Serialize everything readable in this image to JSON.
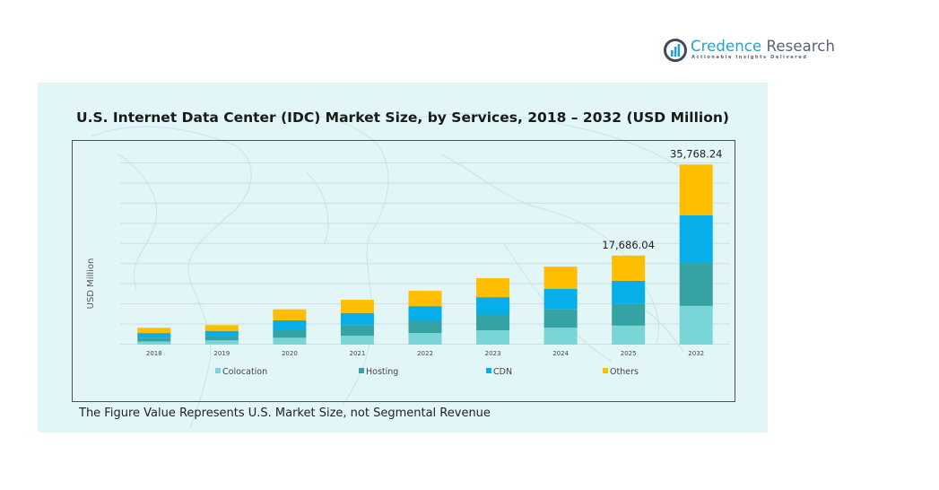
{
  "brand": {
    "name_part1": "Credence",
    "name_part2": " Research",
    "tagline": "Actionable Insights Delivered",
    "icon": "bar-chart-circle-logo-icon"
  },
  "footnote": "The Figure Value Represents U.S. Market Size, not Segmental Revenue",
  "colors": {
    "Colocation": "#7ad6d6",
    "Hosting": "#35a3a3",
    "CDN": "#06aeea",
    "Others": "#ffbf00",
    "panel_bg": "#e2f5f7",
    "gridline": "#cfdfe2"
  },
  "chart_data": {
    "type": "bar",
    "stacked": true,
    "title": "U.S. Internet Data Center (IDC) Market Size, by Services, 2018 – 2032 (USD Million)",
    "xlabel": "",
    "ylabel": "USD Million",
    "ylim": [
      0,
      36000
    ],
    "grid": true,
    "y_ticks_visible": false,
    "legend_position": "bottom",
    "categories": [
      "2018",
      "2019",
      "2020",
      "2021",
      "2022",
      "2023",
      "2024",
      "2025",
      "2032"
    ],
    "series": [
      {
        "name": "Colocation",
        "values": [
          630,
          840,
          1360,
          1780,
          2300,
          2830,
          3350,
          3770,
          7680
        ]
      },
      {
        "name": "Hosting",
        "values": [
          730,
          840,
          1670,
          2090,
          2510,
          3140,
          3660,
          4290,
          8620
        ]
      },
      {
        "name": "CDN",
        "values": [
          940,
          1050,
          1780,
          2410,
          2830,
          3450,
          4080,
          4600,
          9360
        ]
      },
      {
        "name": "Others",
        "values": [
          1050,
          1150,
          2200,
          2620,
          3030,
          3770,
          4400,
          5026,
          10108
        ]
      }
    ],
    "data_labels": [
      {
        "category": "2025",
        "text": "17,686.04"
      },
      {
        "category": "2032",
        "text": "35,768.24"
      }
    ]
  }
}
